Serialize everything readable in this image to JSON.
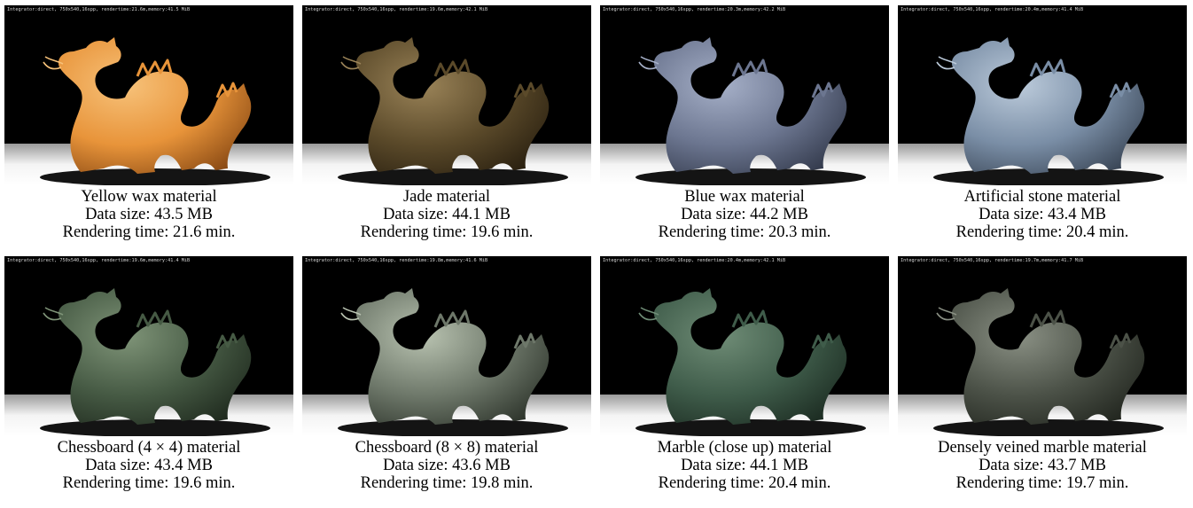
{
  "colors": {
    "background": "#000000",
    "caption_text": "#000000"
  },
  "panels": [
    {
      "overlay": "Integrator:direct, 750x540,16spp, rendertime:21.6m,memory:41.5 MiB",
      "title": "Yellow wax material",
      "data_size": "Data size: 43.5 MB",
      "rendering_time": "Rendering time: 21.6 min.",
      "tint_main": "#e8943a",
      "tint_light": "#f7c27a",
      "tint_dark": "#8a4a14"
    },
    {
      "overlay": "Integrator:direct, 750x540,16spp, rendertime:19.6m,memory:42.1 MiB",
      "title": "Jade material",
      "data_size": "Data size: 44.1 MB",
      "rendering_time": "Rendering time: 19.6 min.",
      "tint_main": "#5b4a2a",
      "tint_light": "#9a8358",
      "tint_dark": "#2a2010"
    },
    {
      "overlay": "Integrator:direct, 750x540,16spp, rendertime:20.3m,memory:42.2 MiB",
      "title": "Blue wax material",
      "data_size": "Data size: 44.2 MB",
      "rendering_time": "Rendering time: 20.3 min.",
      "tint_main": "#6c7690",
      "tint_light": "#a6b0c8",
      "tint_dark": "#343b4d"
    },
    {
      "overlay": "Integrator:direct, 750x540,16spp, rendertime:20.4m,memory:41.4 MiB",
      "title": "Artificial stone material",
      "data_size": "Data size: 43.4 MB",
      "rendering_time": "Rendering time: 20.4 min.",
      "tint_main": "#7a8ea6",
      "tint_light": "#bccbdb",
      "tint_dark": "#3a4656"
    },
    {
      "overlay": "Integrator:direct, 750x540,16spp, rendertime:19.6m,memory:41.4 MiB",
      "title": "Chessboard (4 × 4) material",
      "data_size": "Data size: 43.4 MB",
      "rendering_time": "Rendering time: 19.6 min.",
      "tint_main": "#465a44",
      "tint_light": "#7f9478",
      "tint_dark": "#1f2a1e"
    },
    {
      "overlay": "Integrator:direct, 750x540,16spp, rendertime:19.8m,memory:41.6 MiB",
      "title": "Chessboard (8 × 8) material",
      "data_size": "Data size: 43.6 MB",
      "rendering_time": "Rendering time: 19.8 min.",
      "tint_main": "#6e786a",
      "tint_light": "#b8c2b0",
      "tint_dark": "#2e352c"
    },
    {
      "overlay": "Integrator:direct, 750x540,16spp, rendertime:20.4m,memory:42.1 MiB",
      "title": "Marble (close up) material",
      "data_size": "Data size: 44.1 MB",
      "rendering_time": "Rendering time: 20.4 min.",
      "tint_main": "#3f5c4a",
      "tint_light": "#6f8c76",
      "tint_dark": "#1c2c22"
    },
    {
      "overlay": "Integrator:direct, 750x540,16spp, rendertime:19.7m,memory:41.7 MiB",
      "title": "Densely veined marble material",
      "data_size": "Data size: 43.7 MB",
      "rendering_time": "Rendering time: 19.7 min.",
      "tint_main": "#4c5248",
      "tint_light": "#8a9084",
      "tint_dark": "#22261f"
    }
  ]
}
